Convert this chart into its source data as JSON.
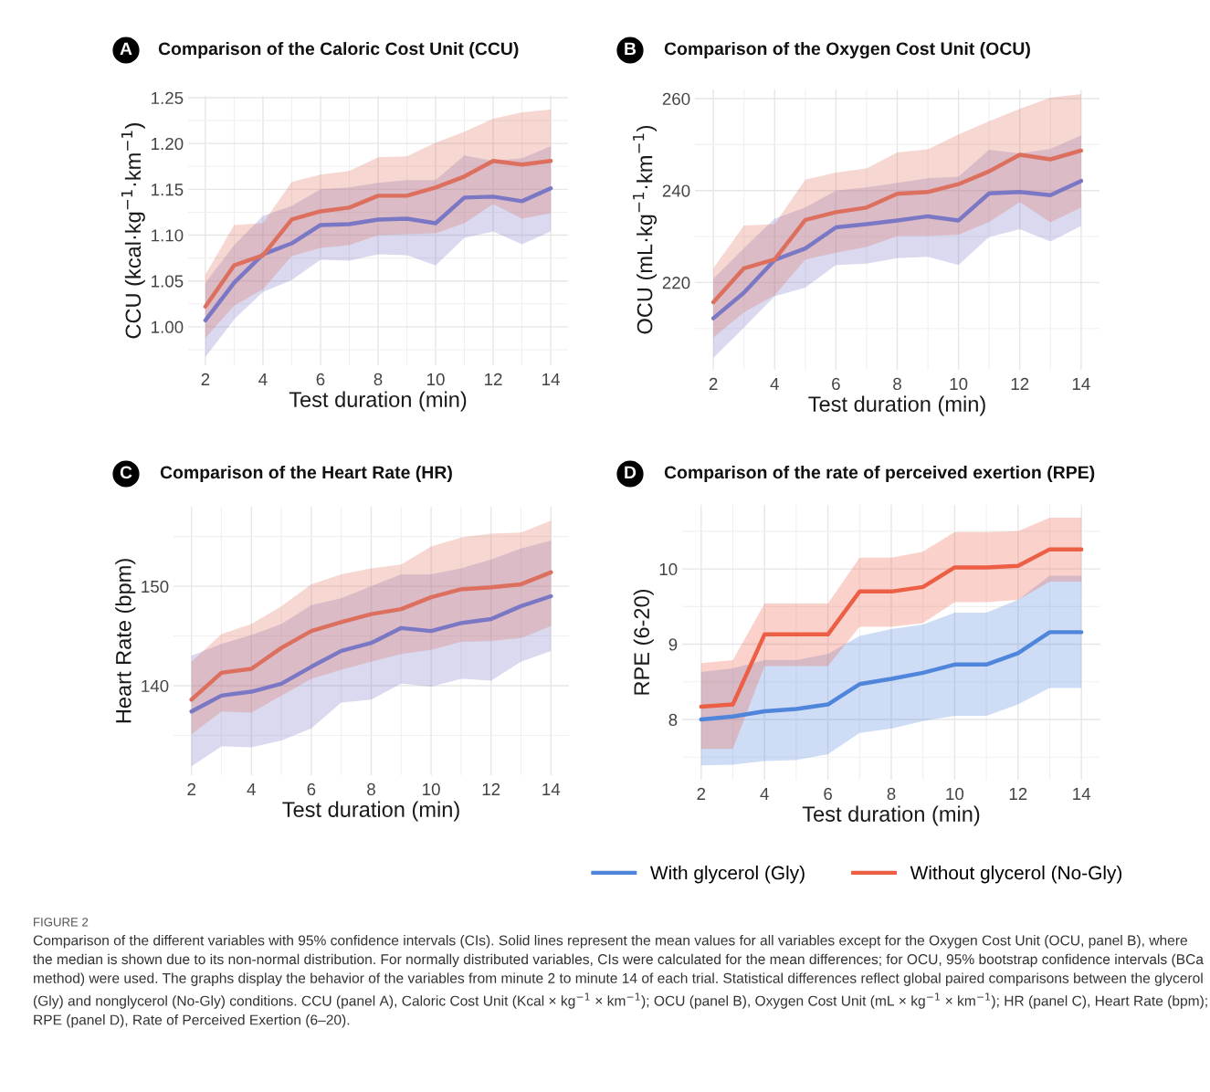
{
  "chart_data": [
    {
      "type": "line",
      "title": "Comparison of the Caloric Cost Unit (CCU)",
      "xlabel": "Test duration (min)",
      "ylabel": "CCU (kcal·kg$^{−1}$·km$^{−1}$)",
      "annotations": [
        "A"
      ],
      "x": [
        2,
        3,
        4,
        5,
        6,
        7,
        8,
        9,
        10,
        11,
        12,
        13,
        14
      ],
      "xlim": [
        1.4,
        14.6
      ],
      "xticks": [
        2,
        4,
        6,
        8,
        10,
        12,
        14
      ],
      "ylim": [
        0.958,
        1.252
      ],
      "yticks": [
        {
          "value": 1.0,
          "label": "1.00"
        },
        {
          "value": 1.05,
          "label": "1.05"
        },
        {
          "value": 1.1,
          "label": "1.10"
        },
        {
          "value": 1.15,
          "label": "1.15"
        },
        {
          "value": 1.2,
          "label": "1.20"
        },
        {
          "value": 1.25,
          "label": "1.25"
        }
      ],
      "grid": true,
      "line_style": "solid",
      "series": [
        {
          "color": "#7a78c4",
          "values": [
            1.007,
            1.048,
            1.079,
            1.091,
            1.111,
            1.112,
            1.117,
            1.118,
            1.113,
            1.141,
            1.142,
            1.137,
            1.151
          ],
          "lower": [
            0.967,
            1.008,
            1.038,
            1.051,
            1.073,
            1.072,
            1.079,
            1.078,
            1.067,
            1.097,
            1.104,
            1.09,
            1.104
          ],
          "upper": [
            1.048,
            1.089,
            1.121,
            1.132,
            1.15,
            1.152,
            1.157,
            1.16,
            1.16,
            1.187,
            1.181,
            1.184,
            1.197
          ]
        },
        {
          "color": "#dd6f5f",
          "values": [
            1.022,
            1.067,
            1.078,
            1.117,
            1.126,
            1.13,
            1.143,
            1.143,
            1.152,
            1.164,
            1.181,
            1.177,
            1.181
          ],
          "lower": [
            0.988,
            1.023,
            1.041,
            1.077,
            1.086,
            1.089,
            1.1,
            1.101,
            1.102,
            1.113,
            1.134,
            1.118,
            1.124
          ],
          "upper": [
            1.057,
            1.111,
            1.113,
            1.158,
            1.166,
            1.17,
            1.185,
            1.186,
            1.201,
            1.213,
            1.227,
            1.234,
            1.237
          ]
        }
      ]
    },
    {
      "type": "line",
      "title": "Comparison of the Oxygen Cost Unit (OCU)",
      "xlabel": "Test duration (min)",
      "ylabel": "OCU (mL·kg$^{−1}$·km$^{−1}$)",
      "annotations": [
        "B"
      ],
      "x": [
        2,
        3,
        4,
        5,
        6,
        7,
        8,
        9,
        10,
        11,
        12,
        13,
        14
      ],
      "xlim": [
        1.4,
        14.6
      ],
      "xticks": [
        2,
        4,
        6,
        8,
        10,
        12,
        14
      ],
      "ylim": [
        201,
        262
      ],
      "yticks": [
        220,
        240,
        260
      ],
      "grid": true,
      "line_style": "solid",
      "series": [
        {
          "color": "#7a78c4",
          "values": [
            212.2,
            217.8,
            224.9,
            227.4,
            232.0,
            232.7,
            233.5,
            234.4,
            233.5,
            239.4,
            239.7,
            239.0,
            242.1
          ],
          "lower": [
            203.6,
            210.2,
            217.0,
            218.9,
            223.8,
            224.1,
            225.3,
            225.6,
            223.8,
            229.9,
            231.6,
            228.9,
            232.3
          ],
          "upper": [
            220.8,
            227.5,
            233.9,
            236.3,
            240.0,
            240.7,
            241.7,
            242.7,
            243.0,
            248.9,
            248.1,
            249.1,
            252.0
          ]
        },
        {
          "color": "#dd6f5f",
          "values": [
            215.7,
            223.1,
            225.0,
            233.6,
            235.3,
            236.3,
            239.3,
            239.7,
            241.4,
            244.2,
            247.8,
            246.8,
            248.7
          ],
          "lower": [
            208.0,
            213.5,
            217.2,
            225.0,
            226.5,
            227.7,
            230.1,
            230.1,
            230.4,
            233.2,
            237.5,
            233.1,
            236.3
          ],
          "upper": [
            223.1,
            232.4,
            232.7,
            242.4,
            243.9,
            244.8,
            248.3,
            249.0,
            252.2,
            255.1,
            257.8,
            260.2,
            261.0
          ]
        }
      ]
    },
    {
      "type": "line",
      "title": "Comparison of the Heart Rate (HR)",
      "xlabel": "Test duration (min)",
      "ylabel": "Heart Rate (bpm)",
      "annotations": [
        "C"
      ],
      "x": [
        2,
        3,
        4,
        5,
        6,
        7,
        8,
        9,
        10,
        11,
        12,
        13,
        14
      ],
      "xlim": [
        1.4,
        14.6
      ],
      "xticks": [
        2,
        4,
        6,
        8,
        10,
        12,
        14
      ],
      "ylim": [
        131,
        158
      ],
      "yticks": [
        140,
        150
      ],
      "grid": true,
      "line_style": "solid",
      "series": [
        {
          "color": "#7a78c4",
          "values": [
            137.4,
            139.0,
            139.4,
            140.2,
            141.9,
            143.5,
            144.3,
            145.8,
            145.5,
            146.3,
            146.7,
            148.0,
            149.0
          ],
          "lower": [
            131.9,
            133.9,
            133.8,
            134.5,
            135.7,
            138.3,
            138.6,
            140.2,
            139.9,
            140.7,
            140.5,
            142.4,
            143.5
          ],
          "upper": [
            143.0,
            144.2,
            145.1,
            146.2,
            148.1,
            148.8,
            150.0,
            151.2,
            151.2,
            151.8,
            152.7,
            153.8,
            154.6
          ]
        },
        {
          "color": "#dd6f5f",
          "values": [
            138.6,
            141.3,
            141.7,
            143.8,
            145.5,
            146.4,
            147.2,
            147.7,
            148.9,
            149.7,
            149.9,
            150.2,
            151.4
          ],
          "lower": [
            135.1,
            137.4,
            137.3,
            139.0,
            140.7,
            141.6,
            142.4,
            143.2,
            143.6,
            144.4,
            144.5,
            144.8,
            146.0
          ],
          "upper": [
            142.4,
            145.2,
            146.2,
            148.0,
            150.2,
            151.2,
            151.8,
            152.2,
            154.0,
            154.9,
            155.3,
            155.4,
            156.6
          ]
        }
      ]
    },
    {
      "type": "line",
      "title": "Comparison of the rate of perceived exertion (RPE)",
      "xlabel": "Test duration (min)",
      "ylabel": "RPE (6-20)",
      "annotations": [
        "D",
        "FIGURE 2",
        "Comparison of the different variables with 95% confidence intervals (CIs). Solid lines represent the mean values for all variables except for the Oxygen Cost Unit (OCU, panel B), where the median is shown due to its non-normal distribution. For normally distributed variables, CIs were calculated for the mean differences; for OCU, 95% bootstrap confidence intervals (BCa method) were used. The graphs display the behavior of the variables from minute 2 to minute 14 of each trial. Statistical differences reflect global paired comparisons between the glycerol (Gly) and nonglycerol (No-Gly) conditions. CCU (panel A), Caloric Cost Unit (Kcal × kg$^{−1}$ × km$^{−1}$); OCU (panel B), Oxygen Cost Unit (mL × kg$^{−1}$ × km$^{−1}$); HR (panel C), Heart Rate (bpm); RPE (panel D), Rate of Perceived Exertion (6–20)."
      ],
      "x": [
        2,
        3,
        4,
        5,
        6,
        7,
        8,
        9,
        10,
        11,
        12,
        13,
        14
      ],
      "xlim": [
        1.4,
        14.6
      ],
      "xticks": [
        2,
        4,
        6,
        8,
        10,
        12,
        14
      ],
      "ylim": [
        7.2,
        10.85
      ],
      "yticks": [
        8,
        9,
        10
      ],
      "grid": true,
      "line_style": "solid",
      "legend": "bottom",
      "series": [
        {
          "name": "With glycerol (Gly)",
          "color": "#4f86dc",
          "values": [
            8.0,
            8.04,
            8.11,
            8.14,
            8.2,
            8.47,
            8.54,
            8.62,
            8.73,
            8.73,
            8.88,
            9.16,
            9.16
          ],
          "lower": [
            7.39,
            7.4,
            7.45,
            7.46,
            7.54,
            7.82,
            7.88,
            7.98,
            8.05,
            8.05,
            8.2,
            8.42,
            8.42
          ],
          "upper": [
            8.63,
            8.68,
            8.79,
            8.79,
            8.87,
            9.11,
            9.2,
            9.26,
            9.42,
            9.42,
            9.59,
            9.91,
            9.91
          ]
        },
        {
          "name": "Without glycerol (No-Gly)",
          "color": "#ec5f45",
          "values": [
            8.17,
            8.2,
            9.13,
            9.13,
            9.13,
            9.7,
            9.7,
            9.76,
            10.02,
            10.02,
            10.04,
            10.26,
            10.26
          ],
          "lower": [
            7.61,
            7.61,
            8.71,
            8.71,
            8.71,
            9.23,
            9.23,
            9.28,
            9.56,
            9.56,
            9.59,
            9.83,
            9.83
          ],
          "upper": [
            8.75,
            8.79,
            9.54,
            9.54,
            9.54,
            10.15,
            10.15,
            10.23,
            10.49,
            10.49,
            10.5,
            10.68,
            10.68
          ]
        }
      ]
    }
  ]
}
